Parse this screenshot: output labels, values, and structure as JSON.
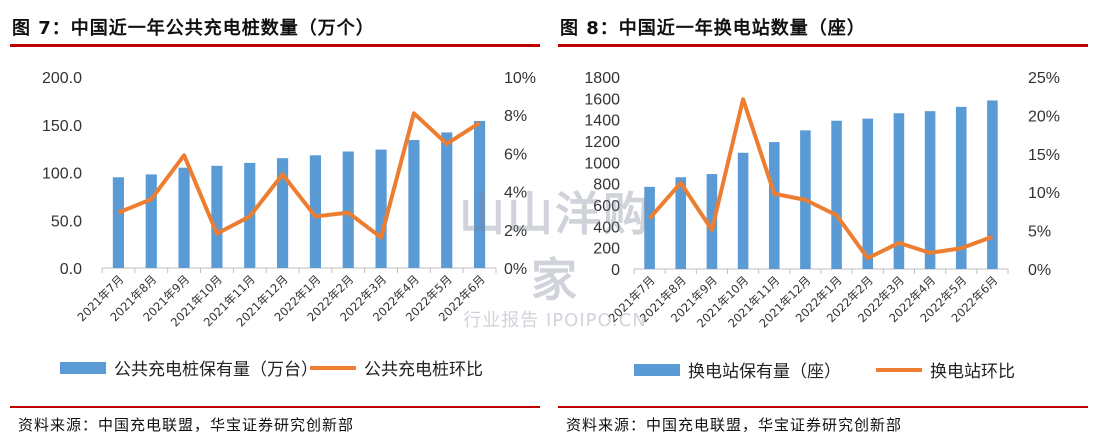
{
  "figures": [
    {
      "title": "图 7：中国近一年公共充电桩数量（万个）",
      "source": "资料来源：中国充电联盟，华宝证券研究创新部"
    },
    {
      "title": "图 8：中国近一年换电站数量（座）",
      "source": "资料来源：中国充电联盟，华宝证券研究创新部"
    }
  ],
  "watermark": {
    "main": "山山洋购家",
    "sub": "行业报告 IPOIPO.CN"
  },
  "colors": {
    "bar": "#5b9bd5",
    "line": "#ed7d31",
    "rule": "#c00000"
  },
  "chart_data": [
    {
      "type": "bar",
      "categories": [
        "2021年7月",
        "2021年8月",
        "2021年9月",
        "2021年10月",
        "2021年11月",
        "2021年12月",
        "2022年1月",
        "2022年2月",
        "2022年3月",
        "2022年4月",
        "2022年5月",
        "2022年6月"
      ],
      "series": [
        {
          "name": "公共充电桩保有量（万台）",
          "type": "bar",
          "axis": "left",
          "values": [
            95,
            98,
            105,
            107,
            110,
            115,
            118,
            122,
            124,
            134,
            142,
            154
          ]
        },
        {
          "name": "公共充电桩环比",
          "type": "line",
          "axis": "right",
          "values": [
            0.029,
            0.036,
            0.059,
            0.018,
            0.027,
            0.049,
            0.027,
            0.029,
            0.016,
            0.081,
            0.065,
            0.076
          ]
        }
      ],
      "y_left": {
        "lim": [
          0,
          200
        ],
        "ticks": [
          "0.0",
          "50.0",
          "100.0",
          "150.0",
          "200.0"
        ]
      },
      "y_right": {
        "lim": [
          0,
          0.1
        ],
        "ticks": [
          "0%",
          "2%",
          "4%",
          "6%",
          "8%",
          "10%"
        ]
      },
      "legend": "bottom"
    },
    {
      "type": "bar",
      "categories": [
        "2021年7月",
        "2021年8月",
        "2021年9月",
        "2021年10月",
        "2021年11月",
        "2021年12月",
        "2022年1月",
        "2022年2月",
        "2022年3月",
        "2022年4月",
        "2022年5月",
        "2022年6月"
      ],
      "series": [
        {
          "name": "换电站保有量（座）",
          "type": "bar",
          "axis": "left",
          "values": [
            770,
            860,
            890,
            1090,
            1190,
            1300,
            1390,
            1410,
            1460,
            1480,
            1520,
            1580
          ]
        },
        {
          "name": "换电站环比",
          "type": "line",
          "axis": "right",
          "values": [
            0.066,
            0.112,
            0.051,
            0.221,
            0.098,
            0.09,
            0.07,
            0.014,
            0.034,
            0.021,
            0.027,
            0.042
          ]
        }
      ],
      "y_left": {
        "lim": [
          0,
          1800
        ],
        "ticks": [
          "0",
          "200",
          "400",
          "600",
          "800",
          "1000",
          "1200",
          "1400",
          "1600",
          "1800"
        ]
      },
      "y_right": {
        "lim": [
          0,
          0.25
        ],
        "ticks": [
          "0%",
          "5%",
          "10%",
          "15%",
          "20%",
          "25%"
        ]
      },
      "legend": "bottom"
    }
  ]
}
